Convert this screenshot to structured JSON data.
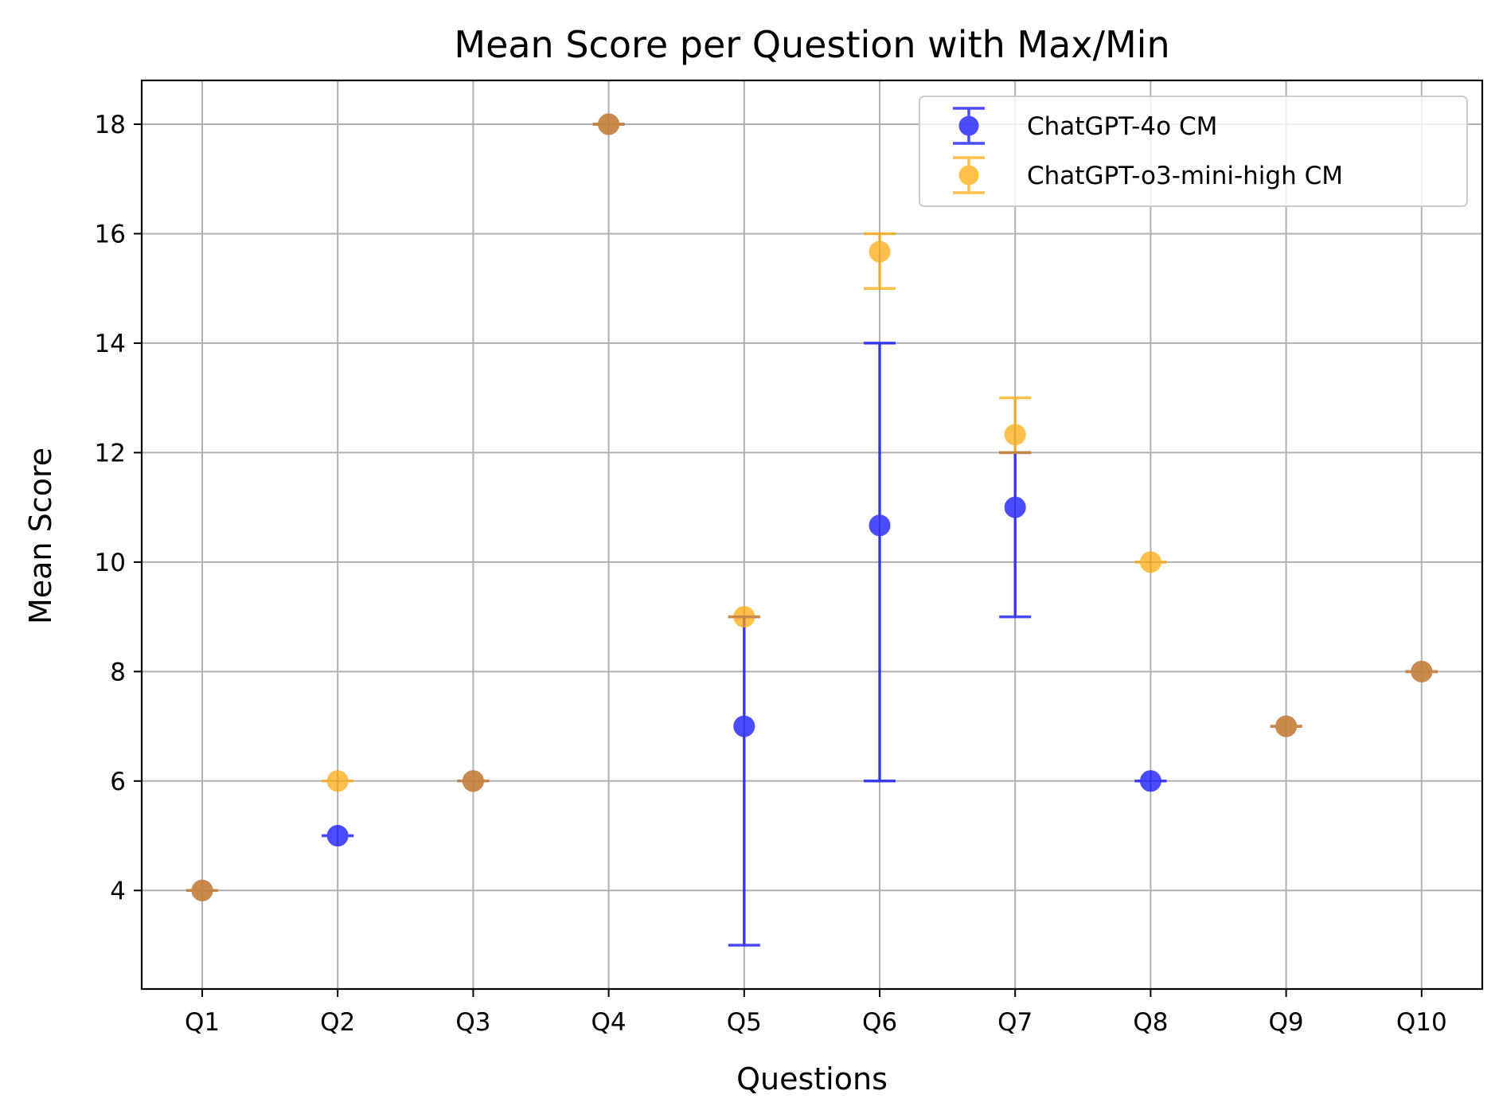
{
  "chart_data": {
    "type": "scatter",
    "title": "Mean Score per Question with Max/Min",
    "xlabel": "Questions",
    "ylabel": "Mean Score",
    "categories": [
      "Q1",
      "Q2",
      "Q3",
      "Q4",
      "Q5",
      "Q6",
      "Q7",
      "Q8",
      "Q9",
      "Q10"
    ],
    "ylim": [
      2.2,
      18.8
    ],
    "yticks": [
      4,
      6,
      8,
      10,
      12,
      14,
      16,
      18
    ],
    "grid": true,
    "legend_position": "top-right",
    "series": [
      {
        "name": "ChatGPT-4o CM",
        "color": "#0000ff",
        "mean": [
          4,
          5,
          6,
          18,
          7,
          10.67,
          11,
          6,
          7,
          8
        ],
        "min": [
          4,
          5,
          6,
          18,
          3,
          6,
          9,
          6,
          7,
          8
        ],
        "max": [
          4,
          5,
          6,
          18,
          9,
          14,
          12,
          6,
          7,
          8
        ]
      },
      {
        "name": "ChatGPT-o3-mini-high CM",
        "color": "#ffa500",
        "mean": [
          4,
          6,
          6,
          18,
          9,
          15.67,
          12.33,
          10,
          7,
          8
        ],
        "min": [
          4,
          6,
          6,
          18,
          9,
          15,
          12,
          10,
          7,
          8
        ],
        "max": [
          4,
          6,
          6,
          18,
          9,
          16,
          13,
          10,
          7,
          8
        ]
      }
    ]
  }
}
